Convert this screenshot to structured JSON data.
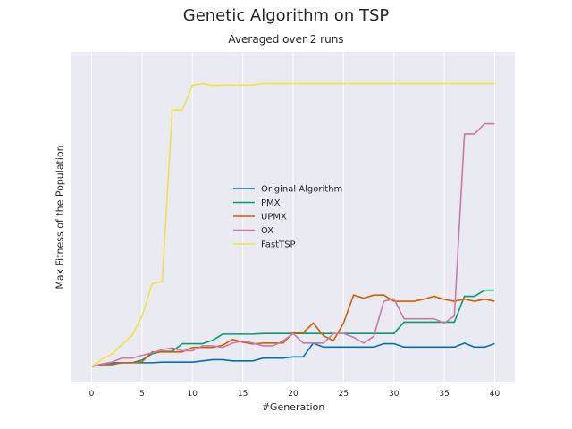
{
  "chart_data": {
    "type": "line",
    "title": "Genetic Algorithm on TSP",
    "subtitle": "Averaged over 2 runs",
    "xlabel": "#Generation",
    "ylabel": "Max Fitness of the Population",
    "xlim": [
      -2,
      42
    ],
    "ylim": [
      0,
      100
    ],
    "xticks": [
      0,
      5,
      10,
      15,
      20,
      25,
      30,
      35,
      40
    ],
    "grid": true,
    "legend_position": "center",
    "series": [
      {
        "name": "Original Algorithm",
        "color": "#0072b2",
        "values": [
          0.0,
          0.6,
          1.2,
          1.2,
          1.2,
          1.2,
          1.2,
          1.4,
          1.4,
          1.4,
          1.4,
          1.8,
          2.2,
          2.2,
          1.8,
          1.8,
          1.8,
          2.7,
          2.7,
          2.7,
          3.1,
          3.1,
          7.6,
          6.3,
          6.3,
          6.3,
          6.3,
          6.3,
          6.3,
          7.4,
          7.4,
          6.3,
          6.3,
          6.3,
          6.3,
          6.3,
          6.3,
          7.6,
          6.3,
          6.3,
          7.4
        ]
      },
      {
        "name": "PMX",
        "color": "#009e73",
        "values": [
          0.0,
          0.6,
          0.6,
          1.2,
          1.2,
          2.1,
          4.1,
          4.9,
          4.9,
          7.4,
          7.4,
          7.4,
          8.5,
          10.5,
          10.5,
          10.5,
          10.5,
          10.7,
          10.7,
          10.7,
          10.7,
          10.7,
          10.7,
          10.7,
          10.7,
          10.7,
          10.7,
          10.7,
          10.7,
          10.7,
          10.7,
          14.4,
          14.4,
          14.4,
          14.4,
          14.4,
          14.4,
          22.8,
          22.8,
          24.8,
          24.8
        ]
      },
      {
        "name": "UPMX",
        "color": "#d55e00",
        "values": [
          0.0,
          0.6,
          0.8,
          1.2,
          1.2,
          1.5,
          4.7,
          4.7,
          4.7,
          4.7,
          6.2,
          6.2,
          6.2,
          6.9,
          8.8,
          7.9,
          7.3,
          7.6,
          7.6,
          7.6,
          11.0,
          11.0,
          14.1,
          10.0,
          8.4,
          14.1,
          23.2,
          22.2,
          23.2,
          23.2,
          21.2,
          21.2,
          21.2,
          21.9,
          22.8,
          21.8,
          21.2,
          21.9,
          21.2,
          21.9,
          21.2
        ]
      },
      {
        "name": "OX",
        "color": "#cc79a7",
        "values": [
          0.0,
          0.8,
          1.4,
          2.7,
          2.7,
          3.6,
          4.4,
          5.5,
          6.0,
          5.1,
          5.1,
          6.7,
          6.7,
          6.2,
          7.6,
          8.3,
          7.6,
          6.7,
          6.7,
          8.3,
          10.7,
          7.6,
          7.6,
          7.6,
          10.7,
          10.7,
          9.5,
          7.6,
          9.8,
          21.2,
          22.0,
          15.5,
          15.5,
          15.5,
          15.5,
          14.1,
          16.4,
          75.6,
          75.6,
          78.9,
          78.9
        ]
      },
      {
        "name": "FastTSP",
        "color": "#f0e442",
        "values": [
          0.0,
          2.3,
          4.0,
          7.1,
          10.0,
          16.3,
          26.9,
          27.6,
          83.4,
          83.4,
          91.4,
          92.0,
          91.4,
          91.5,
          91.5,
          91.5,
          91.5,
          92.0,
          92.0,
          92.0,
          92.0,
          92.0,
          92.0,
          92.0,
          92.0,
          92.0,
          92.0,
          92.0,
          92.0,
          92.0,
          92.0,
          92.0,
          92.0,
          92.0,
          92.0,
          92.0,
          92.0,
          92.0,
          92.0,
          92.0,
          92.0
        ]
      }
    ]
  }
}
